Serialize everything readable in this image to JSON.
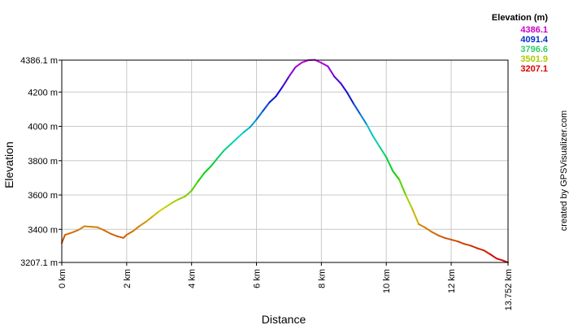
{
  "chart_data": {
    "type": "line",
    "xlabel": "Distance",
    "ylabel": "Elevation",
    "xlim": [
      0,
      13.752
    ],
    "ylim": [
      3207.1,
      4386.1
    ],
    "x_ticks": [
      {
        "value": 0,
        "label": "0 km"
      },
      {
        "value": 2,
        "label": "2 km"
      },
      {
        "value": 4,
        "label": "4 km"
      },
      {
        "value": 6,
        "label": "6 km"
      },
      {
        "value": 8,
        "label": "8 km"
      },
      {
        "value": 10,
        "label": "10 km"
      },
      {
        "value": 12,
        "label": "12 km"
      },
      {
        "value": 13.752,
        "label": "13.752 km"
      }
    ],
    "y_ticks": [
      {
        "value": 3207.1,
        "label": "3207.1 m"
      },
      {
        "value": 3400,
        "label": "3400 m"
      },
      {
        "value": 3600,
        "label": "3600 m"
      },
      {
        "value": 3800,
        "label": "3800 m"
      },
      {
        "value": 4000,
        "label": "4000 m"
      },
      {
        "value": 4200,
        "label": "4200 m"
      },
      {
        "value": 4386.1,
        "label": "4386.1 m"
      }
    ],
    "grid": true,
    "legend": {
      "title": "Elevation (m)",
      "position": "top-right",
      "entries": [
        {
          "label": "4386.1",
          "color": "#cc00cc"
        },
        {
          "label": "4091.4",
          "color": "#0033cc"
        },
        {
          "label": "3796.6",
          "color": "#33cc66"
        },
        {
          "label": "3501.9",
          "color": "#aacc00"
        },
        {
          "label": "3207.1",
          "color": "#dd0000"
        }
      ]
    },
    "credit": "created by GPSVisualizer.com",
    "series": [
      {
        "x": [
          0,
          0.1,
          0.3,
          0.5,
          0.7,
          0.9,
          1.1,
          1.3,
          1.5,
          1.7,
          1.9,
          2.0,
          2.2,
          2.4,
          2.6,
          2.8,
          3.0,
          3.2,
          3.4,
          3.6,
          3.8,
          4.0,
          4.2,
          4.4,
          4.6,
          4.8,
          5.0,
          5.2,
          5.4,
          5.6,
          5.8,
          6.0,
          6.2,
          6.4,
          6.6,
          6.8,
          7.0,
          7.2,
          7.4,
          7.6,
          7.8,
          8.0,
          8.2,
          8.4,
          8.6,
          8.8,
          9.0,
          9.2,
          9.4,
          9.6,
          9.8,
          10.0,
          10.2,
          10.4,
          10.6,
          10.8,
          11.0,
          11.2,
          11.4,
          11.6,
          11.8,
          12.0,
          12.2,
          12.4,
          12.6,
          12.8,
          13.0,
          13.2,
          13.4,
          13.6,
          13.752
        ],
        "y": [
          3320,
          3368,
          3380,
          3395,
          3418,
          3415,
          3412,
          3395,
          3375,
          3360,
          3350,
          3368,
          3390,
          3420,
          3445,
          3475,
          3505,
          3530,
          3555,
          3575,
          3592,
          3625,
          3680,
          3730,
          3768,
          3815,
          3860,
          3895,
          3930,
          3965,
          3995,
          4040,
          4090,
          4140,
          4175,
          4230,
          4290,
          4345,
          4372,
          4386,
          4388,
          4370,
          4350,
          4290,
          4250,
          4195,
          4130,
          4070,
          4010,
          3940,
          3880,
          3820,
          3740,
          3690,
          3600,
          3520,
          3430,
          3410,
          3385,
          3365,
          3350,
          3340,
          3330,
          3315,
          3305,
          3290,
          3278,
          3255,
          3230,
          3218,
          3207
        ]
      }
    ]
  }
}
